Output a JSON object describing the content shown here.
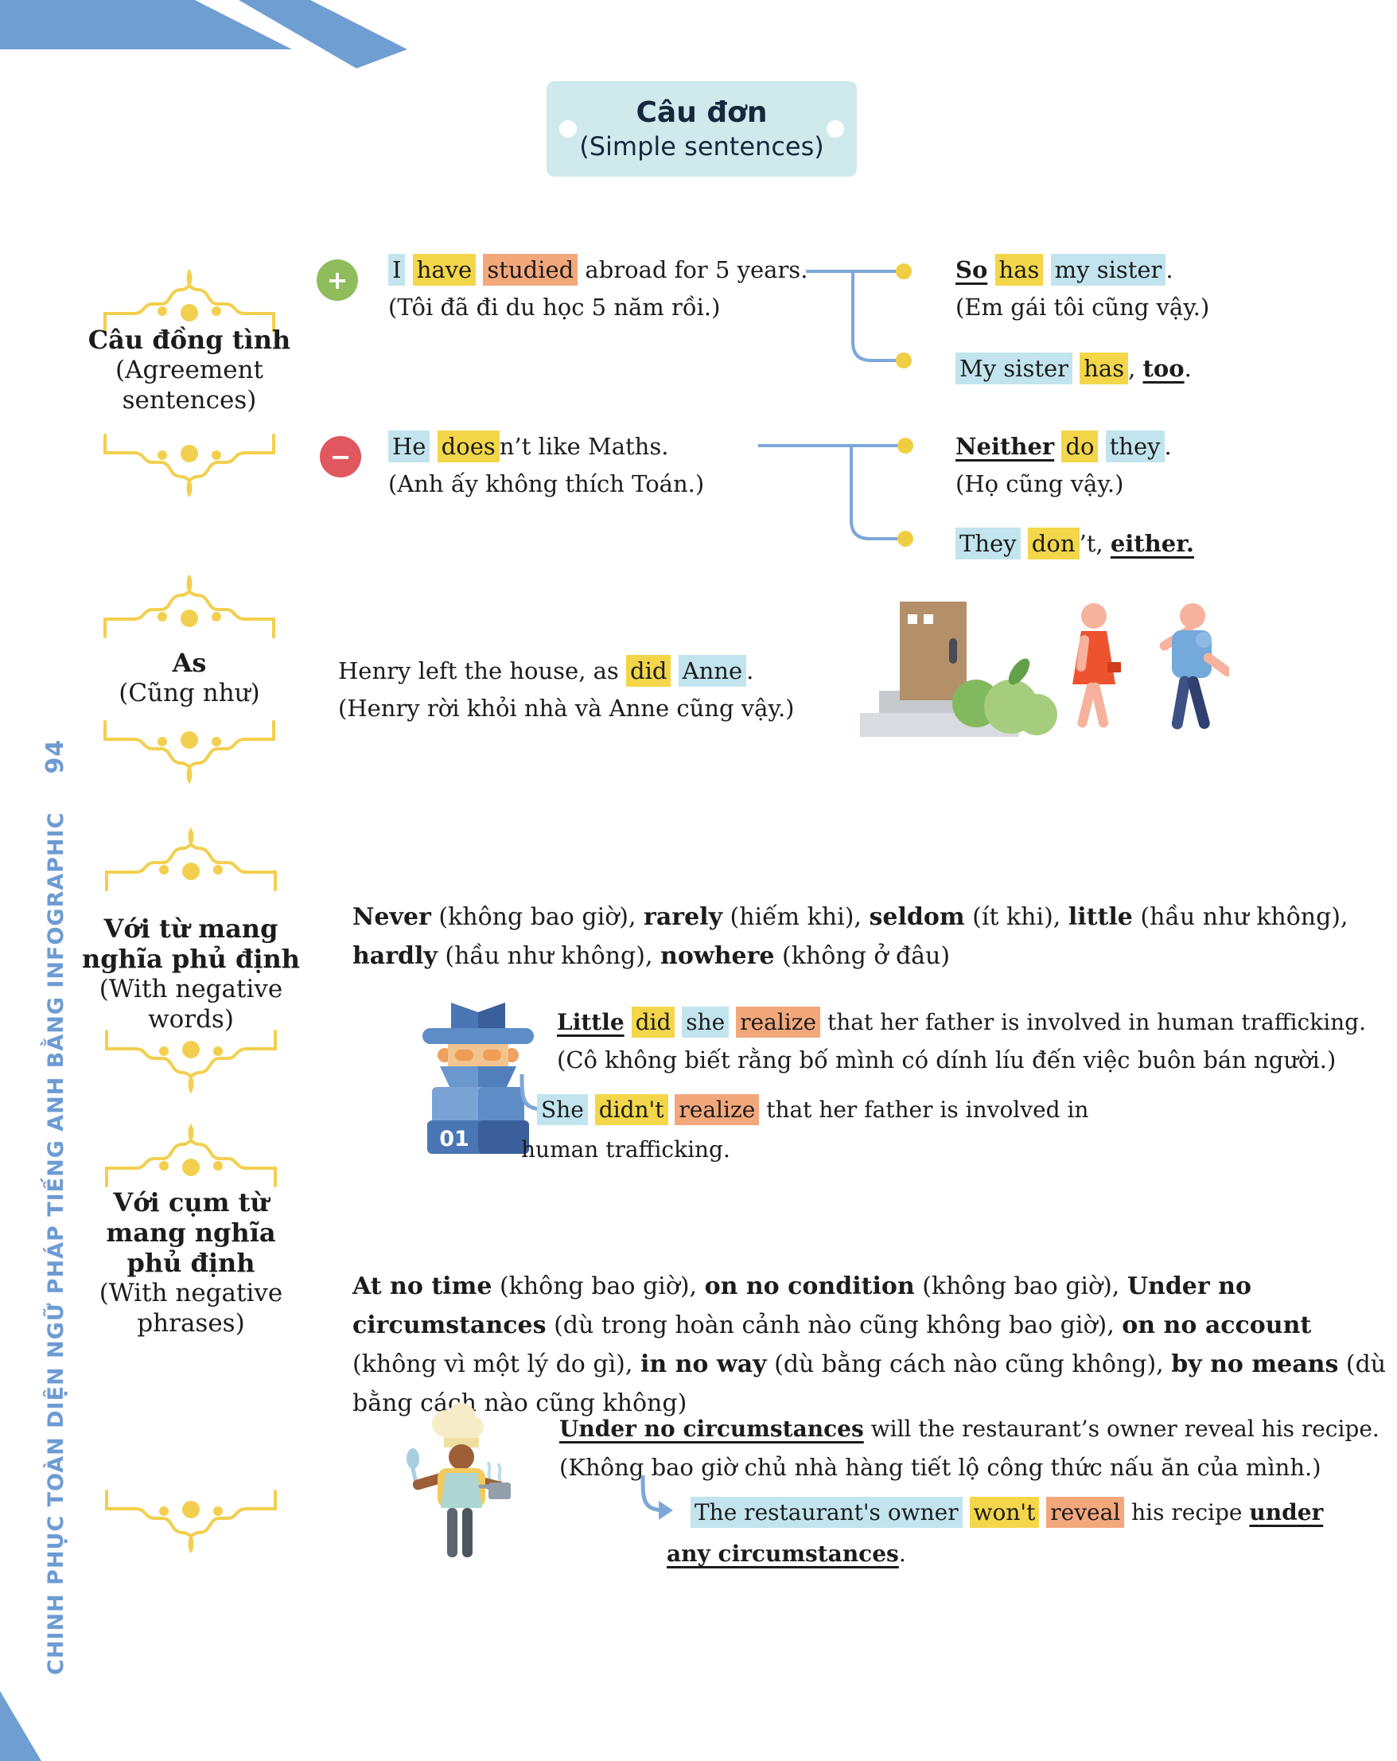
{
  "page": {
    "number": "94",
    "sidebar_title": "CHINH PHỤC TOÀN DIỆN NGỮ PHÁP TIẾNG ANH BẰNG INFOGRAPHIC"
  },
  "banner": {
    "title": "Câu đơn",
    "subtitle": "(Simple sentences)"
  },
  "colors": {
    "highlight_blue": "#c2e4ee",
    "highlight_yellow": "#f3d64a",
    "highlight_orange": "#f3a87c",
    "positive_green": "#8fbc5c",
    "negative_red": "#e0575f",
    "ornament_yellow": "#f2cf4e",
    "connector_blue": "#7da7d9",
    "connector_dot_yellow": "#f0ce44",
    "sidebar_blue": "#6d9bd3",
    "banner_bg": "#cfe9ed",
    "ribbon_blue": "#6f9ed2"
  },
  "icons": {
    "detective_badge_label": "01"
  },
  "sections": {
    "agreement": {
      "label_vi": "Câu đồng tình",
      "label_en": "(Agreement sentences)",
      "positive_sign": "+",
      "negative_sign": "−",
      "positive": {
        "sentence": [
          {
            "t": "I",
            "c": "hb"
          },
          {
            "t": " "
          },
          {
            "t": "have",
            "c": "hy"
          },
          {
            "t": " "
          },
          {
            "t": "studied",
            "c": "ho"
          },
          {
            "t": " abroad for 5 years."
          }
        ],
        "translation": "(Tôi đã đi du học 5 năm rồi.)",
        "responses": [
          {
            "sentence": [
              {
                "t": "So",
                "c": "bu"
              },
              {
                "t": " "
              },
              {
                "t": "has",
                "c": "hy"
              },
              {
                "t": " "
              },
              {
                "t": "my sister",
                "c": "hb"
              },
              {
                "t": "."
              }
            ],
            "translation": "(Em gái tôi cũng vậy.)"
          },
          {
            "sentence": [
              {
                "t": "My sister",
                "c": "hb"
              },
              {
                "t": " "
              },
              {
                "t": "has",
                "c": "hy"
              },
              {
                "t": ", "
              },
              {
                "t": "too",
                "c": "bu"
              },
              {
                "t": "."
              }
            ]
          }
        ]
      },
      "negative": {
        "sentence": [
          {
            "t": "He",
            "c": "hb"
          },
          {
            "t": " "
          },
          {
            "t": "does",
            "c": "hy"
          },
          {
            "t": "n’t like Maths."
          }
        ],
        "translation": "(Anh ấy không thích Toán.)",
        "responses": [
          {
            "sentence": [
              {
                "t": "Neither",
                "c": "bu"
              },
              {
                "t": " "
              },
              {
                "t": "do",
                "c": "hy"
              },
              {
                "t": " "
              },
              {
                "t": "they",
                "c": "hb"
              },
              {
                "t": "."
              }
            ],
            "translation": "(Họ cũng vậy.)"
          },
          {
            "sentence": [
              {
                "t": "They",
                "c": "hb"
              },
              {
                "t": " "
              },
              {
                "t": "don",
                "c": "hy"
              },
              {
                "t": "’t, "
              },
              {
                "t": "either.",
                "c": "bu"
              }
            ]
          }
        ]
      }
    },
    "as": {
      "label_vi": "As",
      "label_en": "(Cũng như)",
      "sentence": [
        {
          "t": "Henry left the house, as "
        },
        {
          "t": "did",
          "c": "hy"
        },
        {
          "t": " "
        },
        {
          "t": "Anne",
          "c": "hb"
        },
        {
          "t": "."
        }
      ],
      "translation": "(Henry rời khỏi nhà và Anne cũng vậy.)"
    },
    "negative_words": {
      "label_vi": "Với từ mang nghĩa phủ định",
      "label_en": "(With negative words)",
      "word_list": [
        {
          "t": "Never",
          "c": "b"
        },
        {
          "t": " (không bao giờ), "
        },
        {
          "t": "rarely",
          "c": "b"
        },
        {
          "t": " (hiếm khi), "
        },
        {
          "t": "seldom",
          "c": "b"
        },
        {
          "t": " (ít khi), "
        },
        {
          "t": "little",
          "c": "b"
        },
        {
          "t": " (hầu như không), "
        },
        {
          "t": "hardly",
          "c": "b"
        },
        {
          "t": " (hầu như không), "
        },
        {
          "t": "nowhere",
          "c": "b"
        },
        {
          "t": " (không ở đâu)"
        }
      ],
      "example": {
        "sentence": [
          {
            "t": "Little",
            "c": "bu"
          },
          {
            "t": " "
          },
          {
            "t": "did",
            "c": "hy"
          },
          {
            "t": " "
          },
          {
            "t": "she",
            "c": "hb"
          },
          {
            "t": " "
          },
          {
            "t": "realize",
            "c": "ho"
          },
          {
            "t": " that her father is involved in human trafficking."
          }
        ],
        "translation": "(Cô không biết rằng bố mình có dính líu đến việc buôn bán người.)",
        "rewrite_line1": [
          {
            "t": "She",
            "c": "hb"
          },
          {
            "t": " "
          },
          {
            "t": "didn't",
            "c": "hy"
          },
          {
            "t": " "
          },
          {
            "t": "realize",
            "c": "ho"
          },
          {
            "t": " that her father is involved in"
          }
        ],
        "rewrite_line2": [
          {
            "t": "human trafficking."
          }
        ]
      }
    },
    "negative_phrases": {
      "label_vi": "Với cụm từ mang nghĩa phủ định",
      "label_en": "(With negative phrases)",
      "word_list": [
        {
          "t": "At no time",
          "c": "b"
        },
        {
          "t": " (không bao giờ), "
        },
        {
          "t": "on no condition",
          "c": "b"
        },
        {
          "t": " (không bao giờ), "
        },
        {
          "t": "Under no circumstances",
          "c": "b"
        },
        {
          "t": " (dù trong hoàn cảnh nào cũng không bao giờ), "
        },
        {
          "t": "on no account",
          "c": "b"
        },
        {
          "t": " (không vì một lý do gì), "
        },
        {
          "t": "in no way",
          "c": "b"
        },
        {
          "t": " (dù bằng cách nào cũng không), "
        },
        {
          "t": "by no means",
          "c": "b"
        },
        {
          "t": " (dù bằng cách nào cũng không)"
        }
      ],
      "example": {
        "sentence": [
          {
            "t": "Under no circumstances",
            "c": "bu"
          },
          {
            "t": " will the restaurant’s owner reveal his recipe."
          }
        ],
        "translation": "(Không bao giờ chủ nhà hàng tiết lộ công thức nấu ăn của mình.)",
        "rewrite_line1": [
          {
            "t": "The restaurant's owner",
            "c": "hb"
          },
          {
            "t": " "
          },
          {
            "t": "won't",
            "c": "hy"
          },
          {
            "t": " "
          },
          {
            "t": "reveal",
            "c": "ho"
          },
          {
            "t": " his recipe "
          },
          {
            "t": "under",
            "c": "bu"
          }
        ],
        "rewrite_line2": [
          {
            "t": "any circumstances",
            "c": "bu"
          },
          {
            "t": "."
          }
        ]
      }
    }
  }
}
